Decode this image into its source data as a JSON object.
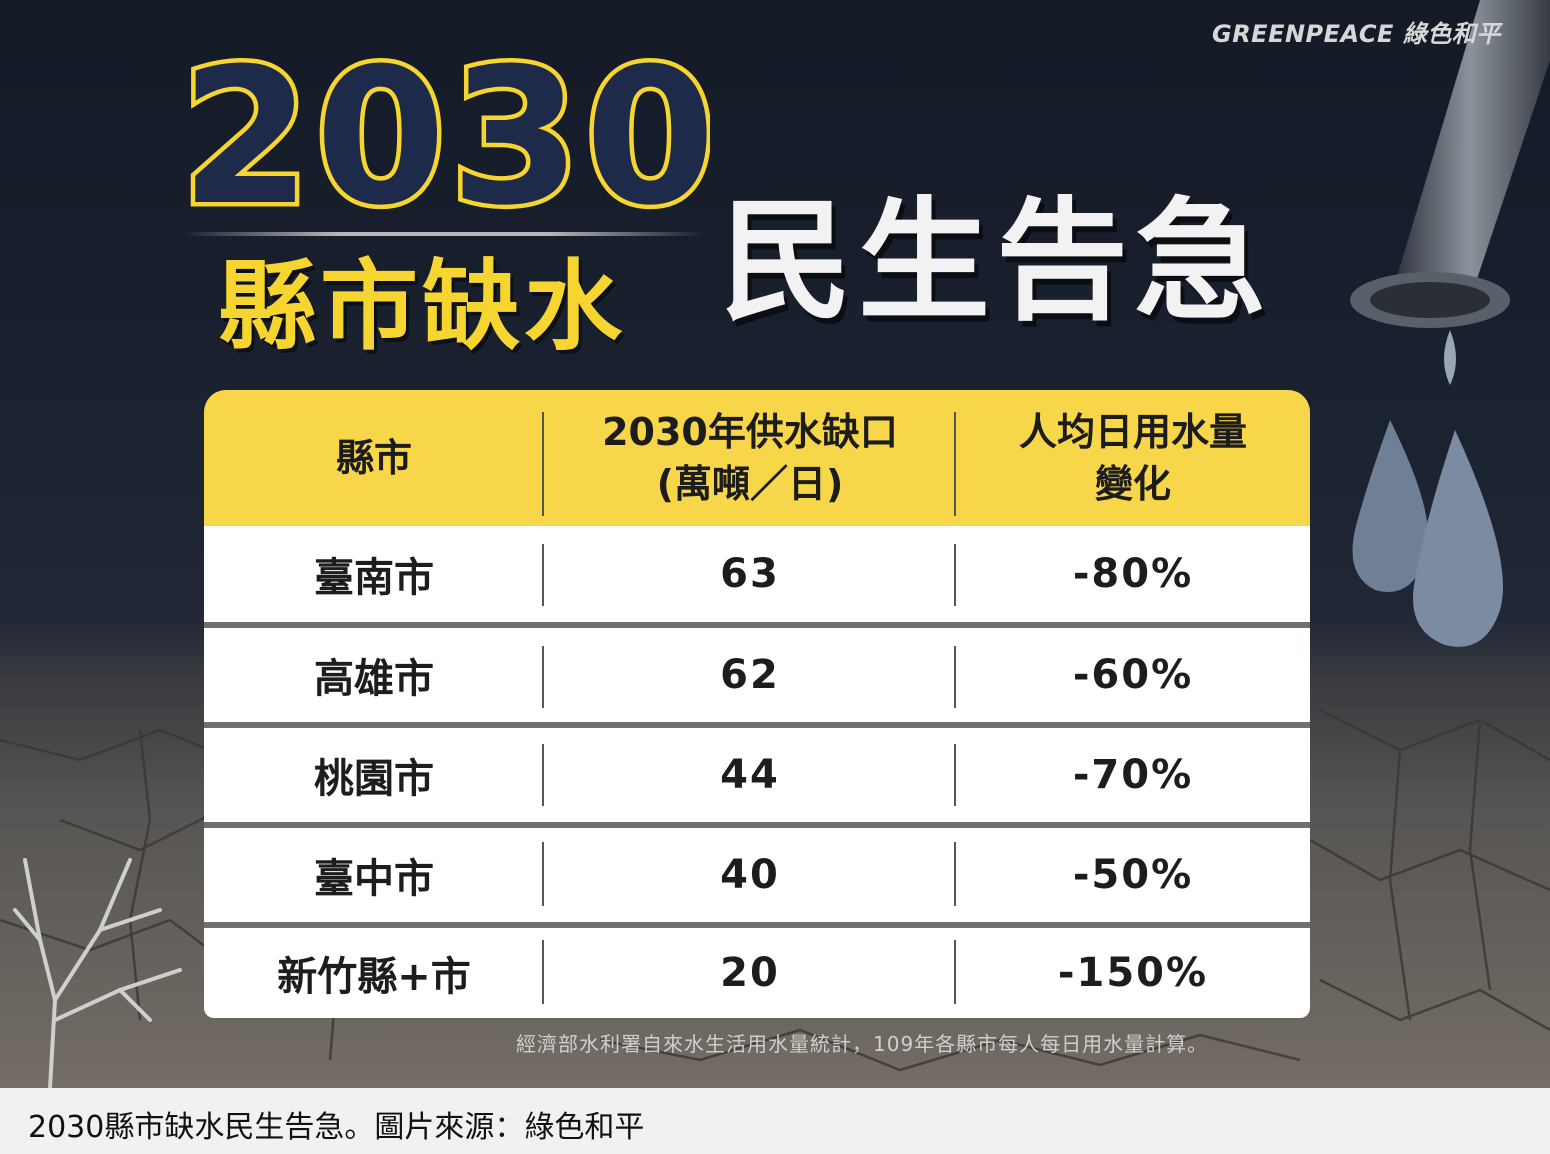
{
  "logo": {
    "text": "GREENPEACE 綠色和平"
  },
  "title": {
    "year": "2030",
    "subtitle": "縣市缺水",
    "headline": "民生告急"
  },
  "table": {
    "headers": {
      "city": "縣市",
      "gap_line1": "2030年供水缺口",
      "gap_line2": "(萬噸／日)",
      "change_line1": "人均日用水量",
      "change_line2": "變化"
    },
    "rows": [
      {
        "city": "臺南市",
        "gap": "63",
        "change": "-80%"
      },
      {
        "city": "高雄市",
        "gap": "62",
        "change": "-60%"
      },
      {
        "city": "桃園市",
        "gap": "44",
        "change": "-70%"
      },
      {
        "city": "臺中市",
        "gap": "40",
        "change": "-50%"
      },
      {
        "city": "新竹縣+市",
        "gap": "20",
        "change": "-150%"
      }
    ]
  },
  "footnote": "經濟部水利署自來水生活用水量統計，109年各縣市每人每日用水量計算。",
  "caption": "2030縣市缺水民生告急。圖片來源：綠色和平",
  "colors": {
    "accent_yellow": "#f7d64a",
    "background_dark": "#1b2230",
    "drop_blue": "#6f7f95"
  }
}
